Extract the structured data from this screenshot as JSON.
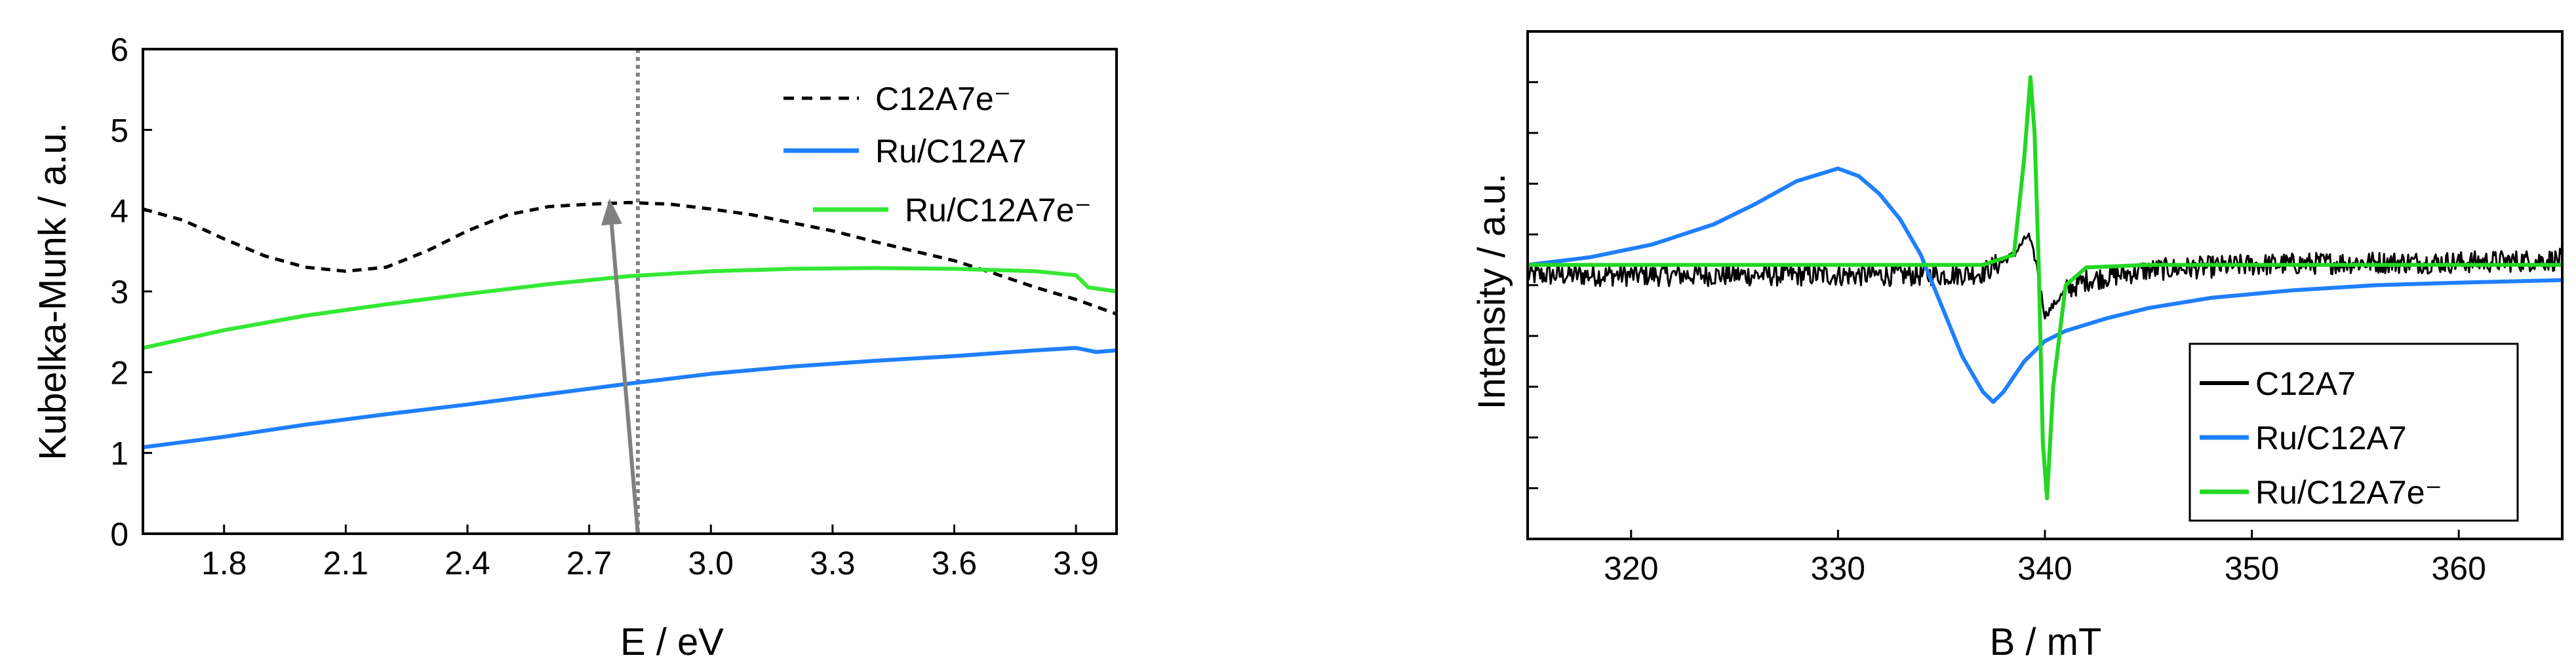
{
  "chart_data": [
    {
      "type": "line",
      "xlabel": "E / eV",
      "ylabel": "Kubelka-Munk / a.u.",
      "xlim": [
        1.6,
        4.0
      ],
      "ylim": [
        0,
        6
      ],
      "xticks": [
        1.8,
        2.1,
        2.4,
        2.7,
        3.0,
        3.3,
        3.6,
        3.9
      ],
      "xtick_labels": [
        "1.8",
        "2.1",
        "2.4",
        "2.7",
        "3.0",
        "3.3",
        "3.6",
        "3.9"
      ],
      "yticks": [
        0,
        1,
        2,
        3,
        4,
        5,
        6
      ],
      "ytick_labels": [
        "0",
        "1",
        "2",
        "3",
        "4",
        "5",
        "6"
      ],
      "grid": false,
      "legend_position": "top-right",
      "vline_x": 2.82,
      "arrow": {
        "from": [
          2.82,
          0.0
        ],
        "to": [
          2.75,
          4.15
        ]
      },
      "series": [
        {
          "name": "C12A7e⁻",
          "color": "#000000",
          "style": "dashed",
          "x": [
            1.6,
            1.7,
            1.8,
            1.9,
            2.0,
            2.1,
            2.2,
            2.3,
            2.4,
            2.5,
            2.6,
            2.7,
            2.8,
            2.9,
            3.0,
            3.1,
            3.2,
            3.3,
            3.4,
            3.5,
            3.6,
            3.7,
            3.8,
            3.9,
            4.0
          ],
          "y": [
            4.02,
            3.88,
            3.65,
            3.44,
            3.3,
            3.25,
            3.3,
            3.5,
            3.75,
            3.95,
            4.05,
            4.08,
            4.1,
            4.08,
            4.02,
            3.95,
            3.85,
            3.75,
            3.62,
            3.5,
            3.38,
            3.22,
            3.05,
            2.9,
            2.72
          ]
        },
        {
          "name": "Ru/C12A7",
          "color": "#1e7fff",
          "style": "solid",
          "x": [
            1.6,
            1.8,
            2.0,
            2.2,
            2.4,
            2.6,
            2.8,
            3.0,
            3.2,
            3.4,
            3.6,
            3.8,
            3.9,
            3.95,
            4.0
          ],
          "y": [
            1.07,
            1.2,
            1.35,
            1.48,
            1.6,
            1.73,
            1.86,
            1.98,
            2.07,
            2.14,
            2.2,
            2.27,
            2.3,
            2.25,
            2.27
          ]
        },
        {
          "name": "Ru/C12A7e⁻",
          "color": "#34e834",
          "style": "solid",
          "x": [
            1.6,
            1.8,
            2.0,
            2.2,
            2.4,
            2.6,
            2.8,
            3.0,
            3.2,
            3.4,
            3.6,
            3.8,
            3.9,
            3.93,
            4.0
          ],
          "y": [
            2.3,
            2.52,
            2.7,
            2.84,
            2.97,
            3.09,
            3.19,
            3.25,
            3.28,
            3.29,
            3.28,
            3.25,
            3.2,
            3.05,
            3.0
          ]
        }
      ]
    },
    {
      "type": "line",
      "xlabel": "B / mT",
      "ylabel": "Intensity / a.u.",
      "xlim": [
        315,
        365
      ],
      "ylim": [
        0,
        10
      ],
      "xticks": [
        320,
        330,
        340,
        350,
        360
      ],
      "xtick_labels": [
        "320",
        "330",
        "340",
        "350",
        "360"
      ],
      "yticks_unlabeled": [
        1,
        2,
        3,
        4,
        5,
        6,
        7,
        8,
        9
      ],
      "grid": false,
      "legend_position": "bottom-right",
      "series": [
        {
          "name": "C12A7",
          "color": "#000000",
          "style": "solid",
          "noisy": true,
          "x": [
            315,
            320,
            325,
            330,
            335,
            337,
            338.5,
            339.2,
            339.6,
            340.0,
            340.4,
            341,
            342,
            345,
            350,
            355,
            360,
            365
          ],
          "y": [
            5.2,
            5.2,
            5.2,
            5.2,
            5.2,
            5.25,
            5.6,
            6.0,
            5.4,
            4.4,
            4.6,
            4.9,
            5.1,
            5.3,
            5.4,
            5.45,
            5.45,
            5.5
          ]
        },
        {
          "name": "Ru/C12A7",
          "color": "#1e7fff",
          "style": "solid",
          "x": [
            315,
            318,
            321,
            324,
            326,
            328,
            330,
            331,
            332,
            333,
            334,
            335,
            336,
            337,
            337.5,
            338,
            339,
            340,
            341,
            343,
            345,
            348,
            352,
            356,
            360,
            365
          ],
          "y": [
            5.4,
            5.55,
            5.8,
            6.2,
            6.6,
            7.05,
            7.3,
            7.15,
            6.8,
            6.3,
            5.6,
            4.6,
            3.6,
            2.9,
            2.7,
            2.9,
            3.5,
            3.9,
            4.1,
            4.35,
            4.55,
            4.75,
            4.9,
            5.0,
            5.05,
            5.1
          ]
        },
        {
          "name": "Ru/C12A7e⁻",
          "color": "#22d822",
          "style": "solid",
          "x": [
            315,
            320,
            330,
            337,
            338.5,
            339.0,
            339.3,
            339.5,
            339.7,
            339.9,
            340.1,
            340.4,
            341,
            342,
            345,
            365
          ],
          "y": [
            5.4,
            5.4,
            5.4,
            5.4,
            5.6,
            7.5,
            9.1,
            8.0,
            5.4,
            1.9,
            0.8,
            3.0,
            5.0,
            5.35,
            5.4,
            5.4
          ]
        }
      ]
    }
  ]
}
